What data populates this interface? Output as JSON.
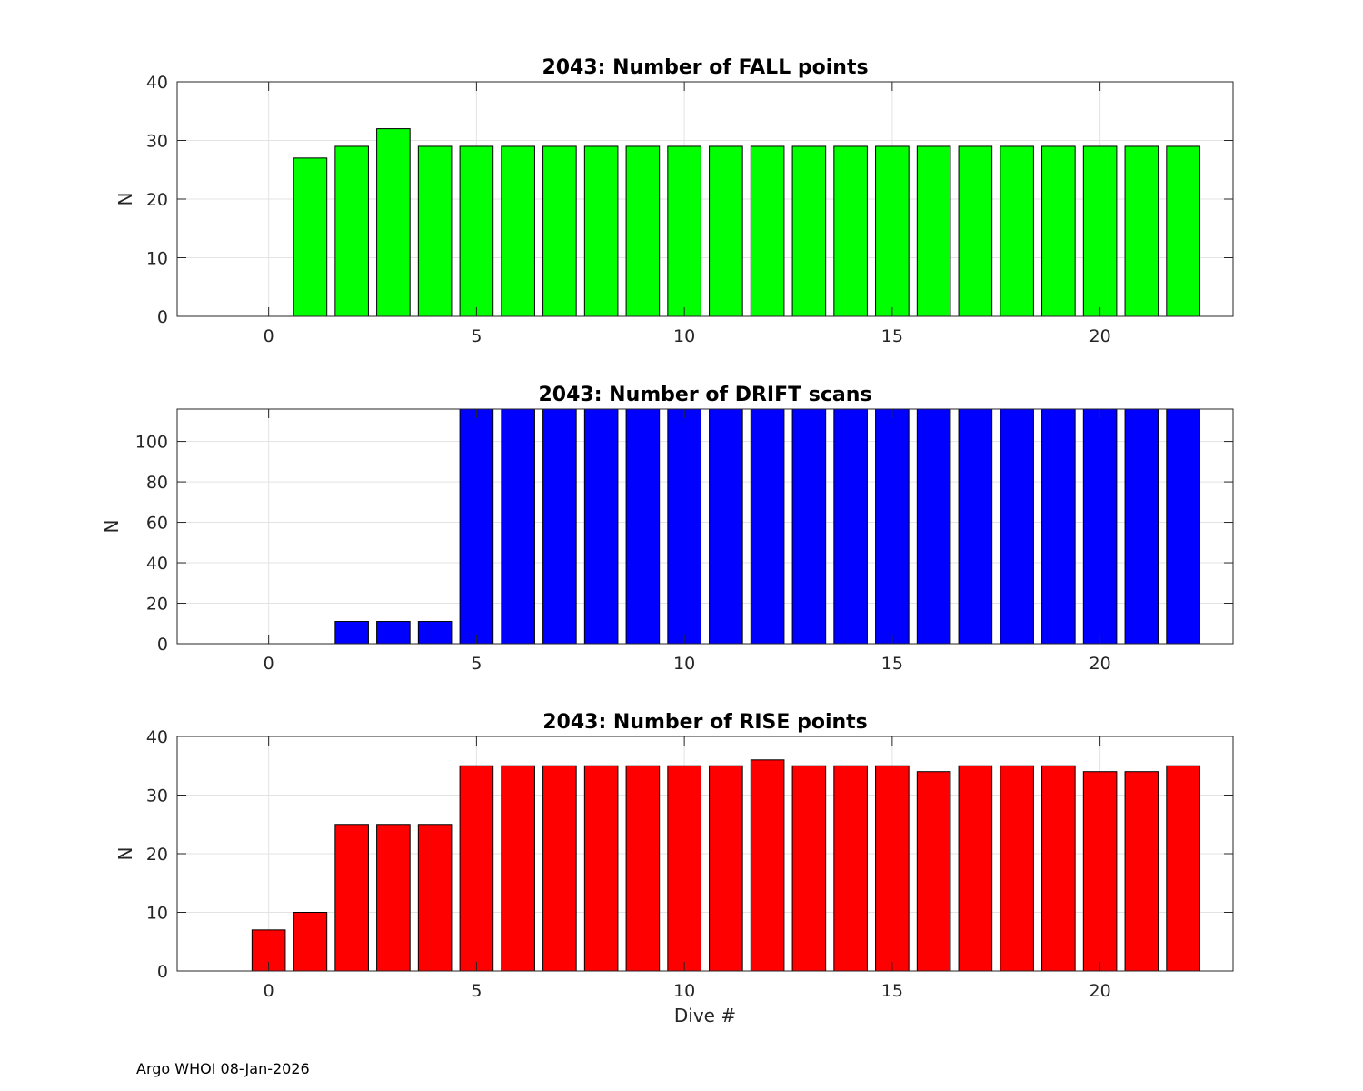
{
  "footer": "Argo WHOI 08-Jan-2026",
  "chart_data": [
    {
      "type": "bar",
      "title": "2043: Number of FALL points",
      "ylabel": "N",
      "xlabel": "",
      "color": "#00ff00",
      "xlim": [
        -2.2,
        23.2
      ],
      "ylim": [
        0,
        40
      ],
      "xticks": [
        0,
        5,
        10,
        15,
        20
      ],
      "yticks": [
        0,
        10,
        20,
        30,
        40
      ],
      "grid": true,
      "x": [
        1,
        2,
        3,
        4,
        5,
        6,
        7,
        8,
        9,
        10,
        11,
        12,
        13,
        14,
        15,
        16,
        17,
        18,
        19,
        20,
        21,
        22
      ],
      "values": [
        27,
        29,
        32,
        29,
        29,
        29,
        29,
        29,
        29,
        29,
        29,
        29,
        29,
        29,
        29,
        29,
        29,
        29,
        29,
        29,
        29,
        29
      ]
    },
    {
      "type": "bar",
      "title": "2043: Number of DRIFT scans",
      "ylabel": "N",
      "xlabel": "",
      "color": "#0000ff",
      "xlim": [
        -2.2,
        23.2
      ],
      "ylim": [
        0,
        116
      ],
      "xticks": [
        0,
        5,
        10,
        15,
        20
      ],
      "yticks": [
        0,
        20,
        40,
        60,
        80,
        100
      ],
      "grid": true,
      "x": [
        2,
        3,
        4,
        5,
        6,
        7,
        8,
        9,
        10,
        11,
        12,
        13,
        14,
        15,
        16,
        17,
        18,
        19,
        20,
        21,
        22
      ],
      "values": [
        11,
        11,
        11,
        116,
        116,
        116,
        116,
        116,
        116,
        116,
        116,
        116,
        116,
        116,
        116,
        116,
        116,
        116,
        116,
        116,
        116
      ]
    },
    {
      "type": "bar",
      "title": "2043: Number of RISE points",
      "ylabel": "N",
      "xlabel": "Dive #",
      "color": "#ff0000",
      "xlim": [
        -2.2,
        23.2
      ],
      "ylim": [
        0,
        40
      ],
      "xticks": [
        0,
        5,
        10,
        15,
        20
      ],
      "yticks": [
        0,
        10,
        20,
        30,
        40
      ],
      "grid": true,
      "x": [
        0,
        1,
        2,
        3,
        4,
        5,
        6,
        7,
        8,
        9,
        10,
        11,
        12,
        13,
        14,
        15,
        16,
        17,
        18,
        19,
        20,
        21,
        22
      ],
      "values": [
        7,
        10,
        25,
        25,
        25,
        35,
        35,
        35,
        35,
        35,
        35,
        35,
        36,
        35,
        35,
        35,
        34,
        35,
        35,
        35,
        34,
        34,
        35
      ]
    }
  ]
}
